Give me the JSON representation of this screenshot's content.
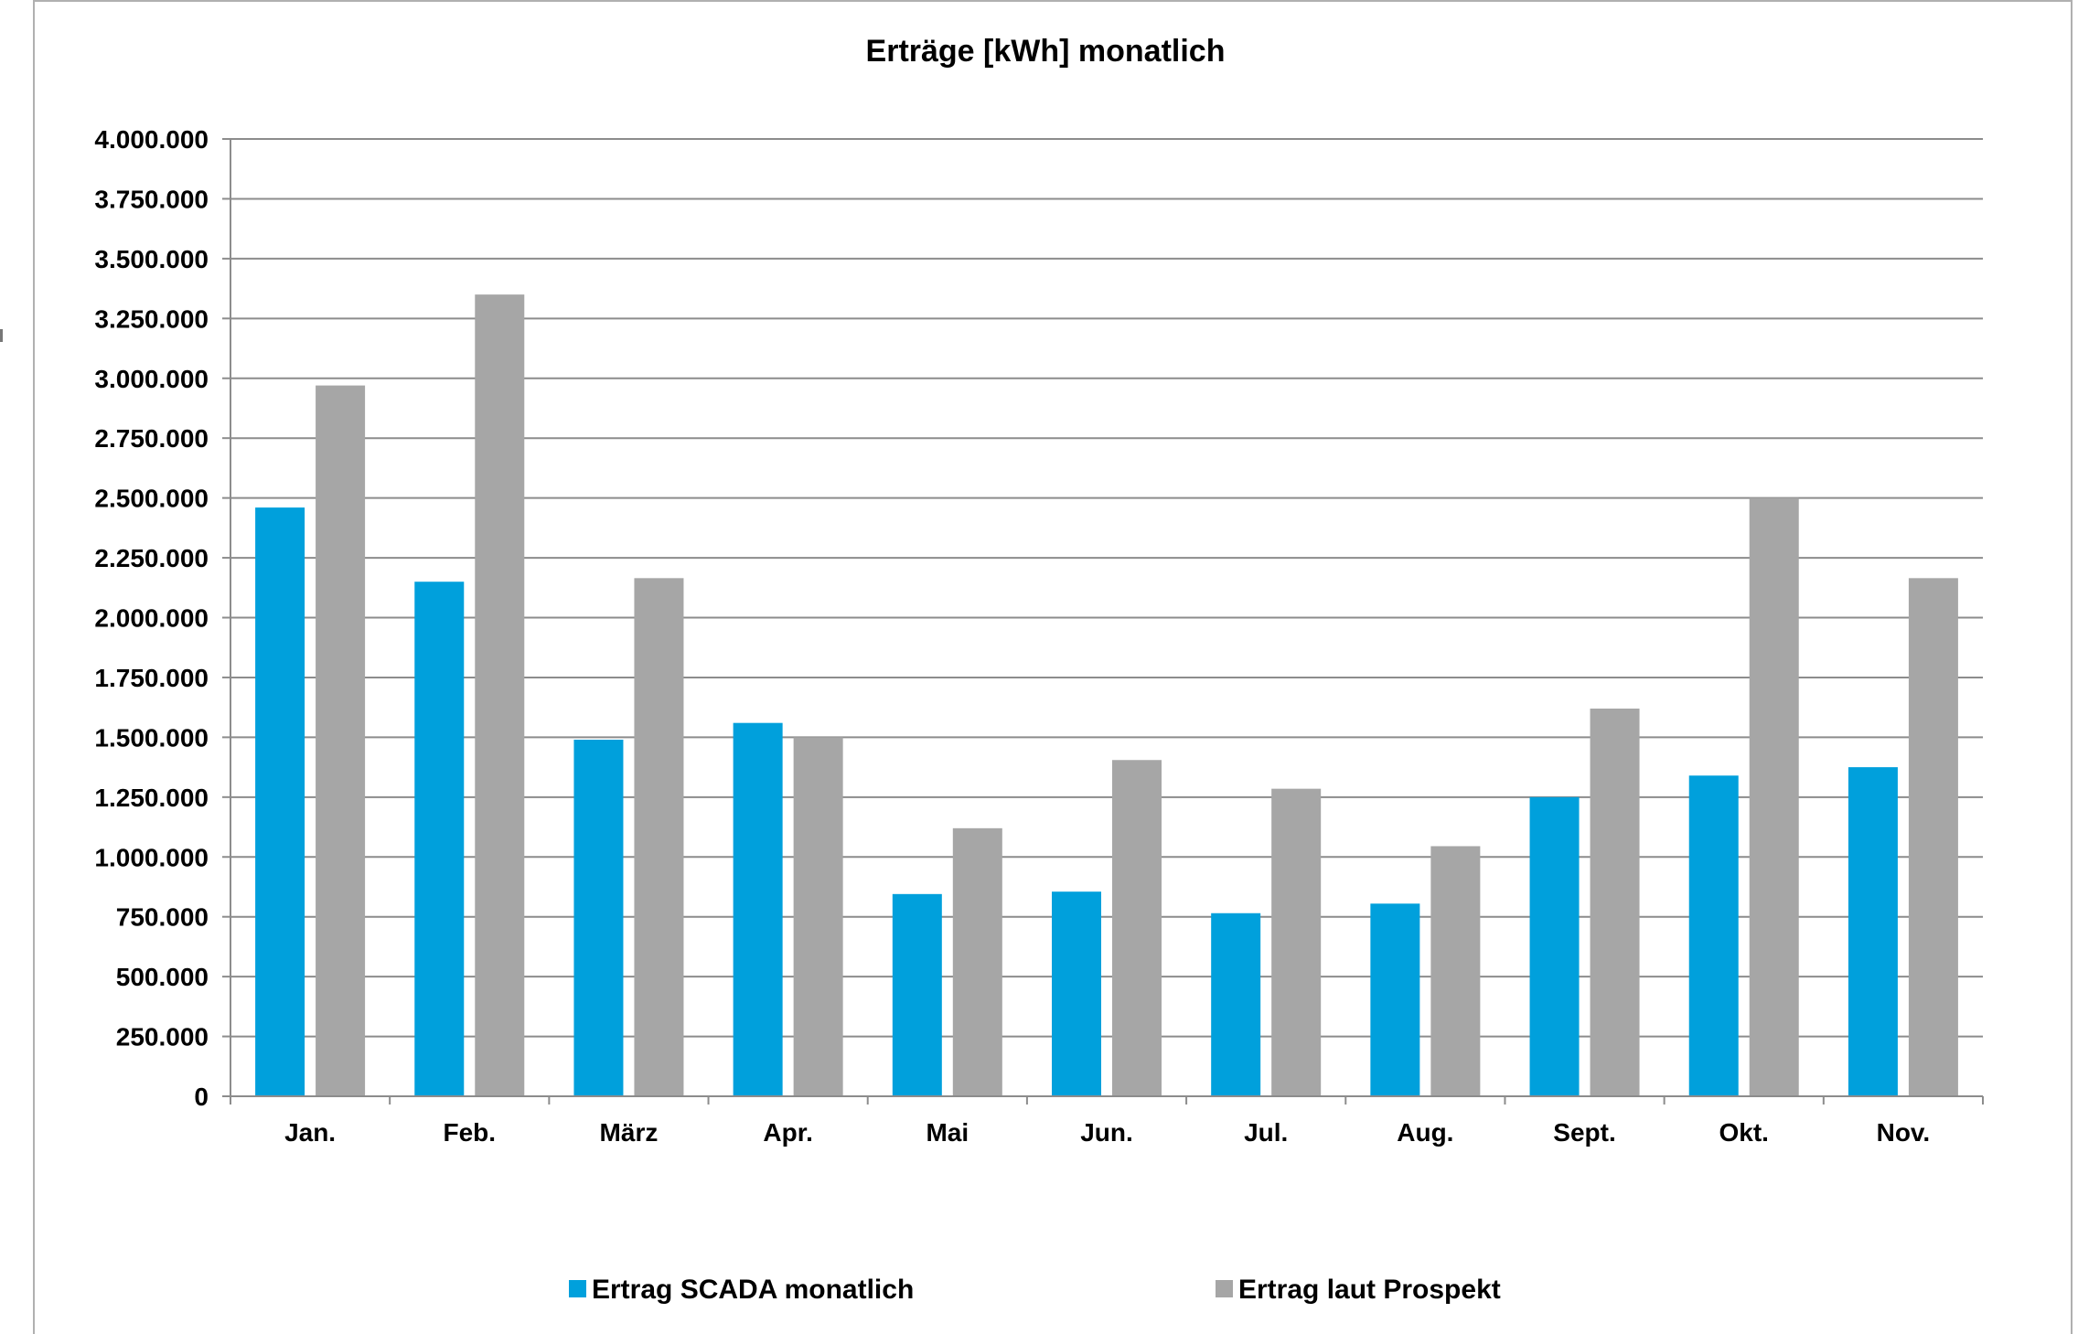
{
  "chart_data": {
    "type": "bar",
    "title": "Erträge [kWh] monatlich",
    "xlabel": "",
    "ylabel": "",
    "categories": [
      "Jan.",
      "Feb.",
      "März",
      "Apr.",
      "Mai",
      "Jun.",
      "Jul.",
      "Aug.",
      "Sept.",
      "Okt.",
      "Nov."
    ],
    "series": [
      {
        "name": "Ertrag SCADA monatlich",
        "color": "#00a0dc",
        "values": [
          2460000,
          2150000,
          1490000,
          1560000,
          845000,
          855000,
          765000,
          805000,
          1250000,
          1340000,
          1375000
        ]
      },
      {
        "name": "Ertrag laut Prospekt",
        "color": "#a6a6a6",
        "values": [
          2970000,
          3350000,
          2165000,
          1500000,
          1120000,
          1405000,
          1285000,
          1045000,
          1620000,
          2500000,
          2165000
        ]
      }
    ],
    "ylim": [
      0,
      4000000
    ],
    "yticks": [
      0,
      250000,
      500000,
      750000,
      1000000,
      1250000,
      1500000,
      1750000,
      2000000,
      2250000,
      2500000,
      2750000,
      3000000,
      3250000,
      3500000,
      3750000,
      4000000
    ],
    "ytick_labels": [
      "0",
      "250.000",
      "500.000",
      "750.000",
      "1.000.000",
      "1.250.000",
      "1.500.000",
      "1.750.000",
      "2.000.000",
      "2.250.000",
      "2.500.000",
      "2.750.000",
      "3.000.000",
      "3.250.000",
      "3.500.000",
      "3.750.000",
      "4.000.000"
    ],
    "grid": true,
    "gridline_color": "#8c8c8c",
    "legend_position": "bottom"
  }
}
